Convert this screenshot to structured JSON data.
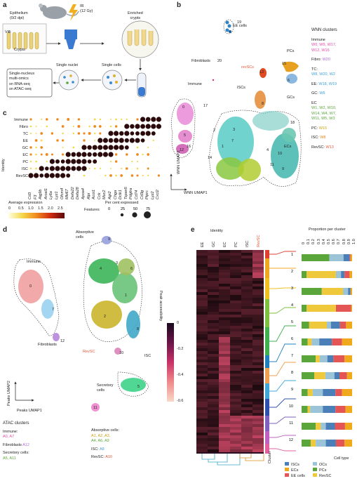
{
  "panels": {
    "a": "a",
    "b": "b",
    "c": "c",
    "d": "d",
    "e": "e"
  },
  "panel_a": {
    "epithelium": "Epithelium",
    "dpi": "(0/2 dpi)",
    "ir": "IR",
    "gy": "(12 Gy)",
    "villi": "Villi",
    "crypts": "Crypts",
    "enriched": "Enriched",
    "crypts2": "crypts",
    "single_nuclei": "Single nuclei",
    "single_cells": "Single cells",
    "multi1": "Single-nucleus",
    "multi2": "multi-omics",
    "rna": "sn RNA-seq",
    "atac": "sn ATAC-seq"
  },
  "panel_b": {
    "ee_cells": "EE cells",
    "fibroblasts": "Fibroblasts",
    "fibro_num": "20",
    "immune": "Immune",
    "immune_num": "17",
    "revscs": "revSCs",
    "iscs": "ISCs",
    "pcs": "PCs",
    "gcs": "GCs",
    "ecs": "ECs",
    "axis_y": "WNN UMAP2",
    "axis_x": "WNN UMAP1",
    "cluster_nums": [
      "0",
      "5",
      "12",
      "16",
      "13",
      "15",
      "2",
      "3",
      "7",
      "1",
      "14",
      "10",
      "4",
      "8",
      "6",
      "18",
      "11",
      "9",
      "19"
    ],
    "legend_title": "WNN clusters",
    "legend": [
      {
        "title": "Immune",
        "items": "W0, W9, W17,",
        "items2": "W12, W16"
      },
      {
        "title": "Fibro:",
        "items": "W20"
      },
      {
        "title": "TC:",
        "items": "W8, W20, W2"
      },
      {
        "title": "EE:",
        "items": "W18, W19"
      },
      {
        "title": "GC:",
        "items": "W6"
      },
      {
        "title": "EC",
        "items": "W1, W2, W10,",
        "items2": "W14, W4, W7,",
        "items3": "W11, W5, W3"
      },
      {
        "title": "PC:",
        "items": "W15"
      },
      {
        "title": "ISC:",
        "items": "W8"
      },
      {
        "title": "RevSC:",
        "items": "W13"
      }
    ]
  },
  "panel_c": {
    "rows": [
      "Immune",
      "Fibro",
      "TC",
      "EE",
      "GC",
      "EC",
      "PC",
      "ISC",
      "RevSC"
    ],
    "axis_y": "Identity",
    "genes": [
      "Cd3",
      "F3",
      "Atg9b",
      "Aroal1",
      "Ly6a",
      "Lyz1",
      "Ofcm4",
      "Mki67",
      "Defa22",
      "Defa28",
      "Apoa4",
      "Alpi",
      "Acot1",
      "Cck",
      "Muc2",
      "Agr2",
      "Chga",
      "Dclk1",
      "Tspan5",
      "Pdgfra",
      "Cd74",
      "Cd3g",
      "Ptprc",
      "Lyz2",
      "Cxcl2"
    ],
    "legend_expr": "Average expression",
    "expr_ticks": [
      "0",
      "0.5",
      "1.0",
      "1.5",
      "2.0",
      "2.5"
    ],
    "features": "Features",
    "legend_pct": "Per cent expressed",
    "pct_ticks": [
      "0",
      "25",
      "50",
      "75"
    ]
  },
  "panel_d": {
    "immune": "Immune",
    "absorptive1": "Absorptive",
    "absorptive2": "cells",
    "fibroblasts": "Fibroblasts",
    "revsc": "RevSC",
    "isc": "ISC",
    "secretory1": "Secretory",
    "secretory2": "cells",
    "axis_y": "Peaks UMAP2",
    "axis_x": "Peaks UMAP1",
    "cluster_nums": [
      "0",
      "7",
      "12",
      "10",
      "4",
      "9",
      "3",
      "6",
      "1",
      "2",
      "5",
      "8",
      "11"
    ],
    "legend_title": "ATAC clusters",
    "immune_lbl": "Immune:",
    "immune_items": "A0, A7",
    "fibro_lbl": "Fibroblasts",
    "fibro_items": "A12",
    "secretory_lbl": "Secretory cells:",
    "secretory_items": "A5, A11",
    "absorptive_lbl": "Absorptive cells:",
    "abs1": "A1, A2, A3,",
    "abs2": "A4, A6, A9",
    "isc_lbl": "ISC:",
    "isc_items": "A8",
    "revsc_lbl": "RevSC:",
    "revsc_items": "A10",
    "colorbar_title": "Peak accessibility",
    "colorbar_ticks": [
      "0",
      "-0.2",
      "-0.4",
      "-0.6"
    ]
  },
  "panel_e": {
    "identity": "Identity",
    "columns": [
      "EE",
      "GC",
      "EC",
      "PC",
      "ISC",
      "RevSC"
    ],
    "cluster_axis": "Cluster",
    "proportion_title": "Proportion per cluster",
    "prop_ticks": [
      "0",
      "0.1",
      "0.2",
      "0.3",
      "0.4",
      "0.5",
      "0.6",
      "0.7",
      "0.8",
      "0.9",
      "1.0"
    ],
    "cell_type": "Cell type",
    "legend": [
      {
        "name": "ISCs",
        "color": "#4a7fb8"
      },
      {
        "name": "OCs",
        "color": "#9cc4d8"
      },
      {
        "name": "ECs",
        "color": "#f0a81c"
      },
      {
        "name": "PCs",
        "color": "#5aa63a"
      },
      {
        "name": "EE cells",
        "color": "#e45656"
      },
      {
        "name": "RevSC",
        "color": "#f0c83c"
      }
    ]
  },
  "chart_data": {
    "type": "bar",
    "title": "Proportion per cluster",
    "categories": [
      "1",
      "2",
      "3",
      "4",
      "5",
      "6",
      "7",
      "8",
      "9",
      "10",
      "11",
      "12"
    ],
    "xlim": [
      0,
      1
    ],
    "series": [
      {
        "name": "RevSC",
        "values": [
          0.0,
          0.58,
          0.42,
          0.58,
          0.35,
          0.08,
          0.08,
          0.22,
          0.1,
          0.05,
          0.1,
          0.1
        ]
      },
      {
        "name": "PCs",
        "values": [
          0.55,
          0.1,
          0.4,
          0.1,
          0.15,
          0.12,
          0.28,
          0.25,
          0.12,
          0.12,
          0.28,
          0.18
        ]
      },
      {
        "name": "OCs",
        "values": [
          0.28,
          0.1,
          0.1,
          0.0,
          0.08,
          0.15,
          0.15,
          0.18,
          0.2,
          0.25,
          0.1,
          0.2
        ]
      },
      {
        "name": "ISCs",
        "values": [
          0.12,
          0.07,
          0.05,
          0.0,
          0.18,
          0.25,
          0.12,
          0.1,
          0.25,
          0.25,
          0.18,
          0.2
        ]
      },
      {
        "name": "EE cells",
        "values": [
          0.02,
          0.1,
          0.0,
          0.3,
          0.12,
          0.2,
          0.22,
          0.15,
          0.13,
          0.2,
          0.2,
          0.17
        ]
      },
      {
        "name": "ECs",
        "values": [
          0.03,
          0.05,
          0.03,
          0.02,
          0.12,
          0.2,
          0.15,
          0.1,
          0.2,
          0.13,
          0.14,
          0.15
        ]
      }
    ]
  }
}
